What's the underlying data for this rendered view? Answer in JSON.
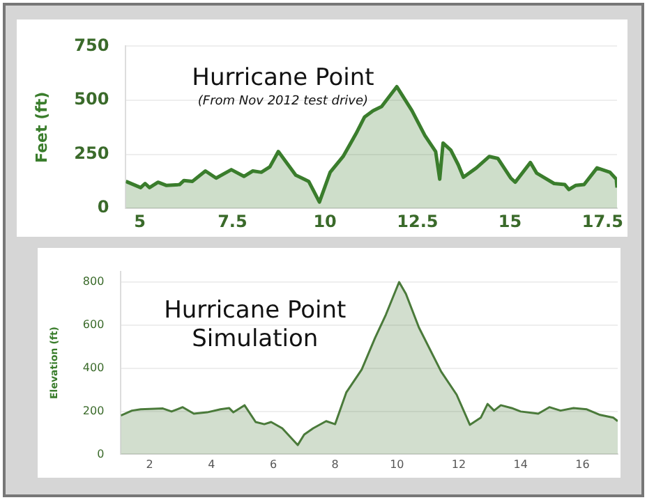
{
  "chart_data": [
    {
      "type": "area",
      "title": "Hurricane Point",
      "subtitle": "(From Nov 2012 test drive)",
      "ylabel": "Feet (ft)",
      "color": "#3a7d2c",
      "grid": "y",
      "x": [
        4.62,
        5.02,
        5.14,
        5.26,
        5.49,
        5.72,
        6.07,
        6.19,
        6.42,
        6.77,
        7.06,
        7.47,
        7.81,
        8.05,
        8.28,
        8.51,
        8.74,
        9.21,
        9.56,
        9.85,
        10.14,
        10.49,
        10.84,
        11.07,
        11.3,
        11.53,
        11.94,
        12.35,
        12.7,
        12.99,
        13.1,
        13.19,
        13.4,
        13.6,
        13.74,
        14.09,
        14.44,
        14.67,
        15.02,
        15.14,
        15.55,
        15.72,
        16.19,
        16.48,
        16.59,
        16.77,
        17.0,
        17.35,
        17.7,
        17.87,
        17.89
      ],
      "values": [
        125,
        96,
        115,
        96,
        121,
        106,
        110,
        129,
        125,
        173,
        140,
        179,
        148,
        173,
        167,
        192,
        263,
        154,
        125,
        29,
        167,
        240,
        346,
        423,
        452,
        471,
        563,
        452,
        337,
        263,
        135,
        302,
        269,
        202,
        144,
        187,
        240,
        231,
        140,
        121,
        212,
        163,
        115,
        110,
        87,
        106,
        110,
        187,
        167,
        135,
        96
      ],
      "xlim": [
        4.62,
        17.89
      ],
      "xticks": [
        5,
        7.5,
        10,
        12.5,
        15,
        17.5
      ],
      "ylim": [
        0,
        750
      ],
      "yticks": [
        0,
        250,
        500,
        750
      ]
    },
    {
      "type": "area",
      "title": "Hurricane Point Simulation",
      "ylabel": "Elevation (ft)",
      "color": "#4a7a3a",
      "grid": "y",
      "x": [
        1.07,
        1.43,
        1.71,
        2.43,
        2.71,
        3.07,
        3.43,
        3.86,
        4.29,
        4.57,
        4.71,
        5.07,
        5.43,
        5.71,
        5.93,
        6.29,
        6.79,
        7.0,
        7.29,
        7.71,
        8.0,
        8.36,
        8.86,
        9.29,
        9.64,
        10.07,
        10.29,
        10.71,
        11.43,
        11.93,
        12.36,
        12.71,
        12.93,
        13.14,
        13.36,
        13.71,
        14.0,
        14.57,
        14.93,
        15.29,
        15.71,
        16.14,
        16.57,
        17.0,
        17.14
      ],
      "values": [
        180,
        203,
        209,
        213,
        199,
        219,
        189,
        195,
        209,
        215,
        195,
        228,
        150,
        140,
        150,
        121,
        43,
        92,
        121,
        154,
        140,
        287,
        394,
        540,
        648,
        800,
        745,
        589,
        384,
        277,
        137,
        170,
        234,
        203,
        228,
        215,
        199,
        189,
        219,
        203,
        215,
        209,
        183,
        170,
        154
      ],
      "xlim": [
        1.07,
        17.14
      ],
      "xticks": [
        2,
        4,
        6,
        8,
        10,
        12,
        14,
        16
      ],
      "ylim": [
        0,
        850
      ],
      "yticks": [
        0,
        200,
        400,
        600,
        800
      ]
    }
  ]
}
